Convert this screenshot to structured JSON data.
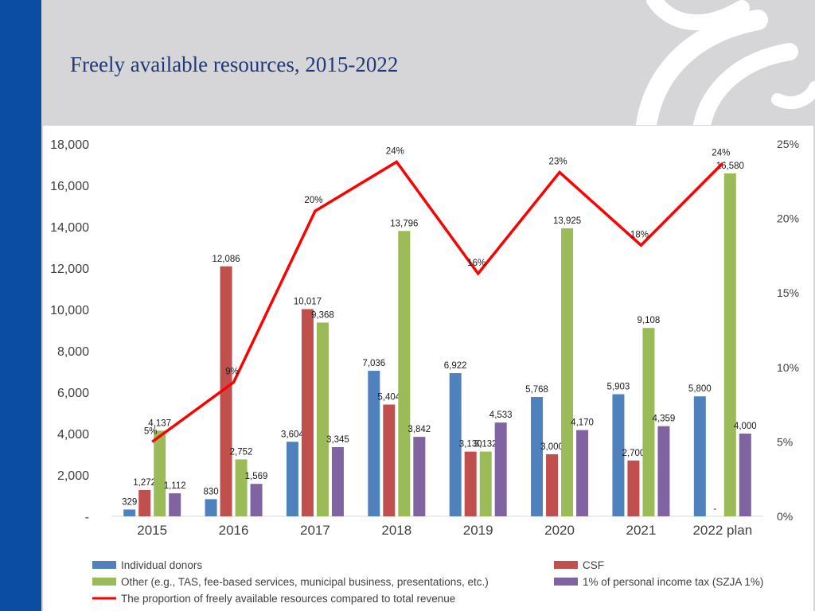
{
  "slide": {
    "title": "Freely available resources, 2015-2022"
  },
  "colors": {
    "background": "#d6d6d8",
    "left_bar": "#0b4da2",
    "title": "#1f3a7a"
  },
  "chart_data": {
    "type": "bar",
    "categories": [
      "2015",
      "2016",
      "2017",
      "2018",
      "2019",
      "2020",
      "2021",
      "2022 plan"
    ],
    "y_left": {
      "ticks": [
        "-",
        "2,000",
        "4,000",
        "6,000",
        "8,000",
        "10,000",
        "12,000",
        "14,000",
        "16,000",
        "18,000"
      ],
      "range": [
        0,
        18000
      ]
    },
    "y_right": {
      "ticks": [
        "0%",
        "5%",
        "10%",
        "15%",
        "20%",
        "25%"
      ],
      "range": [
        0,
        25
      ]
    },
    "grid": false,
    "legend_position": "bottom",
    "series": [
      {
        "name": "Individual donors",
        "type": "bar",
        "color": "#4f81bd",
        "values": [
          329,
          830,
          3604,
          7036,
          6922,
          5768,
          5903,
          5800
        ],
        "labels": [
          "329",
          "830",
          "3,604",
          "7,036",
          "6,922",
          "5,768",
          "5,903",
          "5,800"
        ]
      },
      {
        "name": "CSF",
        "type": "bar",
        "color": "#c0504d",
        "values": [
          1272,
          12086,
          10017,
          5404,
          3130,
          3000,
          2700,
          0
        ],
        "labels": [
          "1,272",
          "12,086",
          "10,017",
          "5,404",
          "3,130",
          "3,000",
          "2,700",
          "-"
        ]
      },
      {
        "name": "Other (e.g., TAS, fee-based services, municipal business, presentations, etc.)",
        "type": "bar",
        "color": "#9bbb59",
        "values": [
          4137,
          2752,
          9368,
          13796,
          3132,
          13925,
          9108,
          16580
        ],
        "labels": [
          "4,137",
          "2,752",
          "9,368",
          "13,796",
          "3,132",
          "13,925",
          "9,108",
          "16,580"
        ]
      },
      {
        "name": "1% of personal income tax (SZJA 1%)",
        "type": "bar",
        "color": "#8064a2",
        "values": [
          1112,
          1569,
          3345,
          3842,
          4533,
          4170,
          4359,
          4000
        ],
        "labels": [
          "1,112",
          "1,569",
          "3,345",
          "3,842",
          "4,533",
          "4,170",
          "4,359",
          "4,000"
        ]
      },
      {
        "name": "The proportion of freely available resources compared to total revenue",
        "type": "line",
        "axis": "right",
        "color": "#ff0000",
        "values": [
          5,
          9,
          20.5,
          23.8,
          16.3,
          23.1,
          18.2,
          23.7
        ],
        "labels": [
          "5%",
          "9%",
          "20%",
          "24%",
          "16%",
          "23%",
          "18%",
          "24%"
        ]
      }
    ]
  }
}
